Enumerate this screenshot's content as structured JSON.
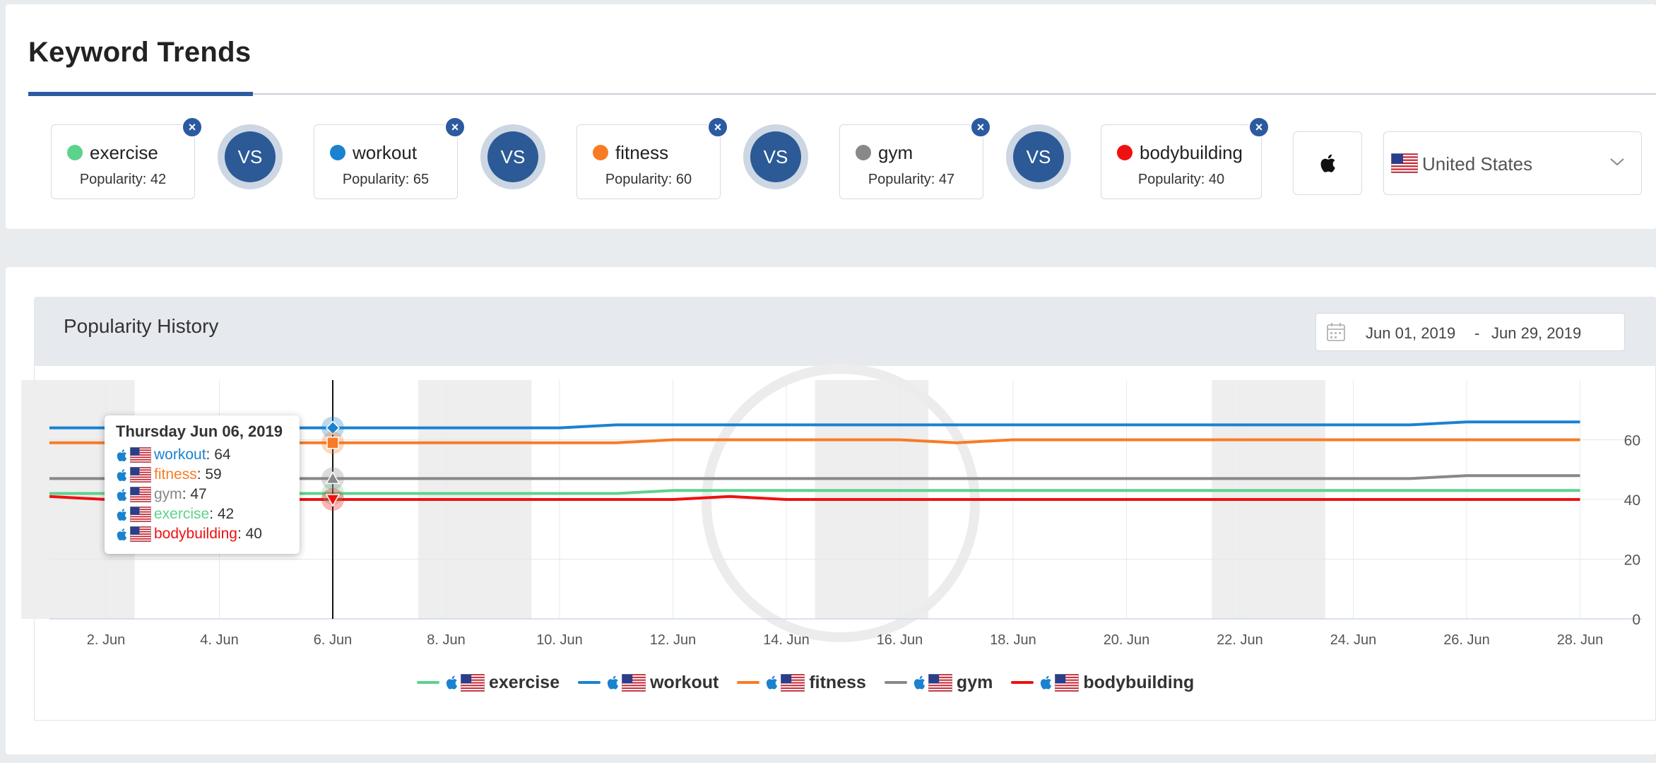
{
  "page": {
    "title": "Keyword Trends"
  },
  "keywords": [
    {
      "name": "exercise",
      "popularity_label": "Popularity: 42",
      "color": "#5dd28a"
    },
    {
      "name": "workout",
      "popularity_label": "Popularity: 65",
      "color": "#1a82d0"
    },
    {
      "name": "fitness",
      "popularity_label": "Popularity: 60",
      "color": "#f77c25"
    },
    {
      "name": "gym",
      "popularity_label": "Popularity: 47",
      "color": "#888888"
    },
    {
      "name": "bodybuilding",
      "popularity_label": "Popularity: 40",
      "color": "#ee1111"
    }
  ],
  "vs_label": "VS",
  "platform_icon": "apple-icon",
  "country": {
    "name": "United States",
    "flag_icon": "us-flag-icon"
  },
  "history": {
    "title": "Popularity History",
    "date_start": "Jun 01, 2019",
    "date_sep": "-",
    "date_end": "Jun 29, 2019"
  },
  "tooltip": {
    "date": "Thursday Jun 06, 2019",
    "rows": [
      {
        "name": "workout",
        "value": ": 64",
        "color": "#1a82d0"
      },
      {
        "name": "fitness",
        "value": ": 59",
        "color": "#f77c25"
      },
      {
        "name": "gym",
        "value": ": 47",
        "color": "#888888"
      },
      {
        "name": "exercise",
        "value": ": 42",
        "color": "#5dd28a"
      },
      {
        "name": "bodybuilding",
        "value": ": 40",
        "color": "#ee1111"
      }
    ]
  },
  "chart_data": {
    "type": "line",
    "x": [
      "Jun 01",
      "Jun 02",
      "Jun 03",
      "Jun 04",
      "Jun 05",
      "Jun 06",
      "Jun 07",
      "Jun 08",
      "Jun 09",
      "Jun 10",
      "Jun 11",
      "Jun 12",
      "Jun 13",
      "Jun 14",
      "Jun 15",
      "Jun 16",
      "Jun 17",
      "Jun 18",
      "Jun 19",
      "Jun 20",
      "Jun 21",
      "Jun 22",
      "Jun 23",
      "Jun 24",
      "Jun 25",
      "Jun 26",
      "Jun 27",
      "Jun 28"
    ],
    "x_tick_labels": [
      "2. Jun",
      "4. Jun",
      "6. Jun",
      "8. Jun",
      "10. Jun",
      "12. Jun",
      "14. Jun",
      "16. Jun",
      "18. Jun",
      "20. Jun",
      "22. Jun",
      "24. Jun",
      "26. Jun",
      "28. Jun"
    ],
    "x_tick_days": [
      2,
      4,
      6,
      8,
      10,
      12,
      14,
      16,
      18,
      20,
      22,
      24,
      26,
      28
    ],
    "y_ticks": [
      0,
      20,
      40,
      60
    ],
    "ylim": [
      0,
      80
    ],
    "weekend_bands": [
      [
        1,
        3
      ],
      [
        8,
        10
      ],
      [
        15,
        17
      ],
      [
        22,
        24
      ]
    ],
    "hover_day": 6,
    "grid": true,
    "legend_position": "bottom",
    "series": [
      {
        "name": "exercise",
        "color": "#5dd28a",
        "marker": "none",
        "values": [
          42,
          42,
          42,
          42,
          42,
          42,
          42,
          42,
          42,
          42,
          42,
          43,
          43,
          43,
          43,
          43,
          43,
          43,
          43,
          43,
          43,
          43,
          43,
          43,
          43,
          43,
          43,
          43
        ]
      },
      {
        "name": "workout",
        "color": "#1a82d0",
        "marker": "diamond",
        "values": [
          64,
          64,
          64,
          64,
          64,
          64,
          64,
          64,
          64,
          64,
          65,
          65,
          65,
          65,
          65,
          65,
          65,
          65,
          65,
          65,
          65,
          65,
          65,
          65,
          65,
          66,
          66,
          66
        ]
      },
      {
        "name": "fitness",
        "color": "#f77c25",
        "marker": "square",
        "values": [
          59,
          59,
          59,
          59,
          59,
          59,
          59,
          59,
          59,
          59,
          59,
          60,
          60,
          60,
          60,
          60,
          59,
          60,
          60,
          60,
          60,
          60,
          60,
          60,
          60,
          60,
          60,
          60
        ]
      },
      {
        "name": "gym",
        "color": "#888888",
        "marker": "triangle",
        "values": [
          47,
          47,
          47,
          47,
          47,
          47,
          47,
          47,
          47,
          47,
          47,
          47,
          47,
          47,
          47,
          47,
          47,
          47,
          47,
          47,
          47,
          47,
          47,
          47,
          47,
          48,
          48,
          48
        ]
      },
      {
        "name": "bodybuilding",
        "color": "#ee1111",
        "marker": "triangle-down",
        "values": [
          41,
          40,
          40,
          40,
          40,
          40,
          40,
          40,
          40,
          40,
          40,
          40,
          41,
          40,
          40,
          40,
          40,
          40,
          40,
          40,
          40,
          40,
          40,
          40,
          40,
          40,
          40,
          40
        ]
      }
    ]
  }
}
